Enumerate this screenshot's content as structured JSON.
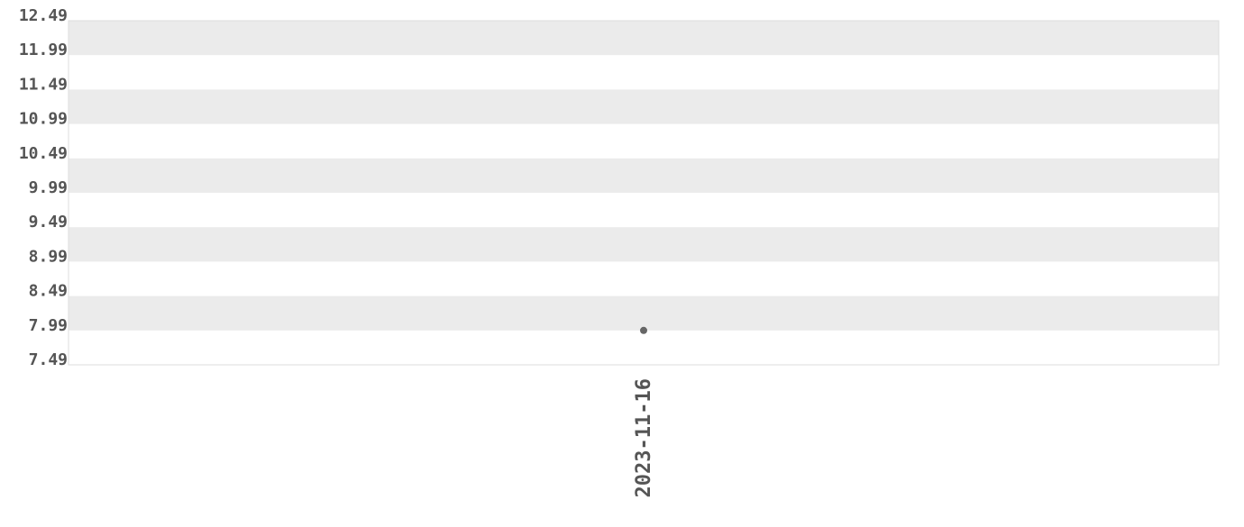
{
  "chart_data": {
    "type": "scatter",
    "title": "",
    "xlabel": "",
    "ylabel": "",
    "x_categories": [
      "2023-11-16"
    ],
    "points": [
      {
        "x": "2023-11-16",
        "y": 7.99
      }
    ],
    "ylim": [
      7.49,
      12.49
    ],
    "y_ticks": [
      "12.49",
      "11.99",
      "11.49",
      "10.99",
      "10.49",
      "9.99",
      "9.49",
      "8.99",
      "8.49",
      "7.99",
      "7.49"
    ],
    "grid": "alternating horizontal bands",
    "legend": "none",
    "colors": {
      "band": "#ebebeb",
      "point": "#666666",
      "axis_text": "#555555",
      "border": "#dddddd"
    }
  }
}
